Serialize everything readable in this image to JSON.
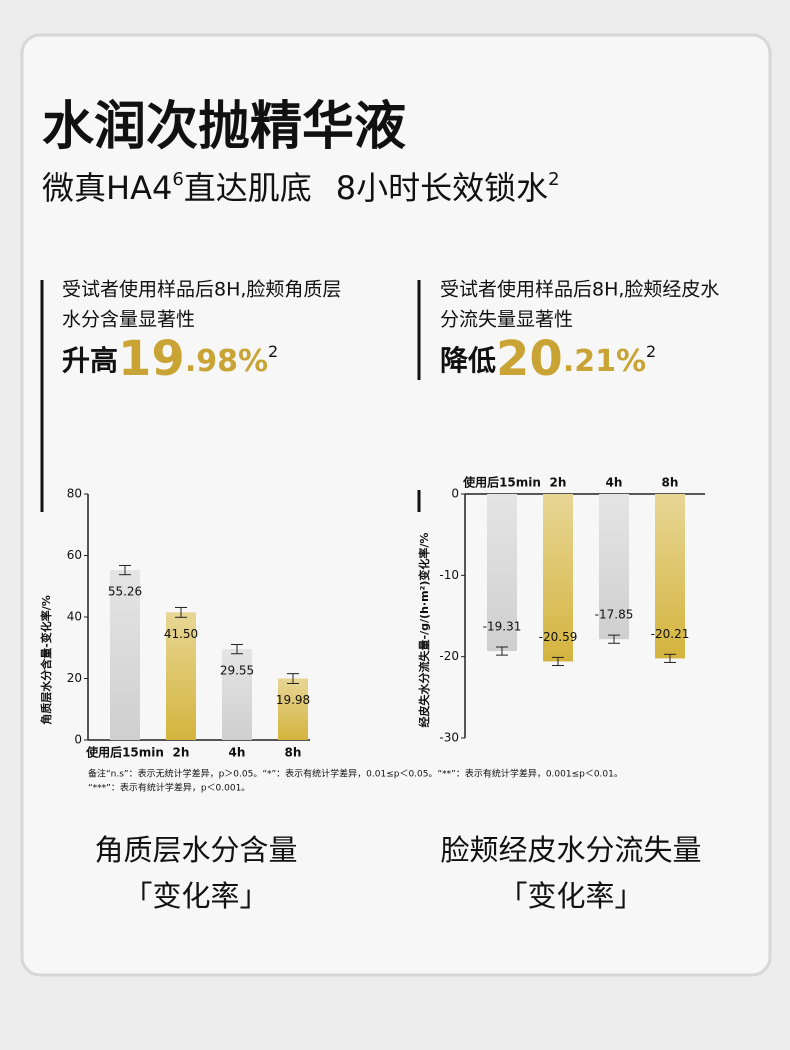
{
  "title": "水润次抛精华液",
  "subtitle": [
    "微真HA4",
    "6",
    "直达肌底",
    "8小时长效锁水",
    "2"
  ],
  "claims": [
    {
      "lines": [
        "受试者使用样品后8H,脸颊角质层",
        "水分含量显著性"
      ],
      "prefix": "升高",
      "int": "19",
      "dec": ".98%",
      "note": "2"
    },
    {
      "lines": [
        "受试者使用样品后8H,脸颊经皮水",
        "分流失量显著性"
      ],
      "prefix": "降低",
      "int": "20",
      "dec": ".21%",
      "note": "2"
    }
  ],
  "chart_data": [
    {
      "type": "bar",
      "y_label": "角质层水分含量-变化率/%",
      "categories": [
        "使用后15min",
        "2h",
        "4h",
        "8h"
      ],
      "values": [
        55.26,
        41.5,
        29.55,
        19.98
      ],
      "value_labels": [
        "55.26",
        "41.50",
        "29.55",
        "19.98"
      ],
      "errors": [
        1.5,
        1.6,
        1.5,
        1.6
      ],
      "colors": [
        "#cfcfcf",
        "#d4b43e",
        "#cfcfcf",
        "#d4b43e"
      ],
      "ylim": [
        0,
        80
      ],
      "yticks": [
        0,
        20,
        40,
        60,
        80
      ]
    },
    {
      "type": "bar",
      "y_label": "经皮失水分流失量-/g/(h·m²)变化率/%",
      "categories": [
        "使用后15min",
        "2h",
        "4h",
        "8h"
      ],
      "values": [
        -19.31,
        -20.59,
        -17.85,
        -20.21
      ],
      "errors": [
        0.5,
        0.5,
        0.5,
        0.5
      ],
      "colors": [
        "#cfcfcf",
        "#d4b43e",
        "#cfcfcf",
        "#d4b43e"
      ],
      "ylim": [
        -30,
        0
      ],
      "yticks": [
        0,
        -10,
        -20,
        -30
      ]
    }
  ],
  "footnote": [
    "备注“n.s”：表示无统计学差异，p＞0.05。“*”：表示有统计学差异，0.01≤p＜0.05。“**”：表示有统计学差异，0.001≤p＜0.01。",
    "“***”：表示有统计学差异，p＜0.001。"
  ],
  "captions": [
    [
      "角质层水分含量",
      "「变化率」"
    ],
    [
      "脸颊经皮水分流失量",
      "「变化率」"
    ]
  ]
}
